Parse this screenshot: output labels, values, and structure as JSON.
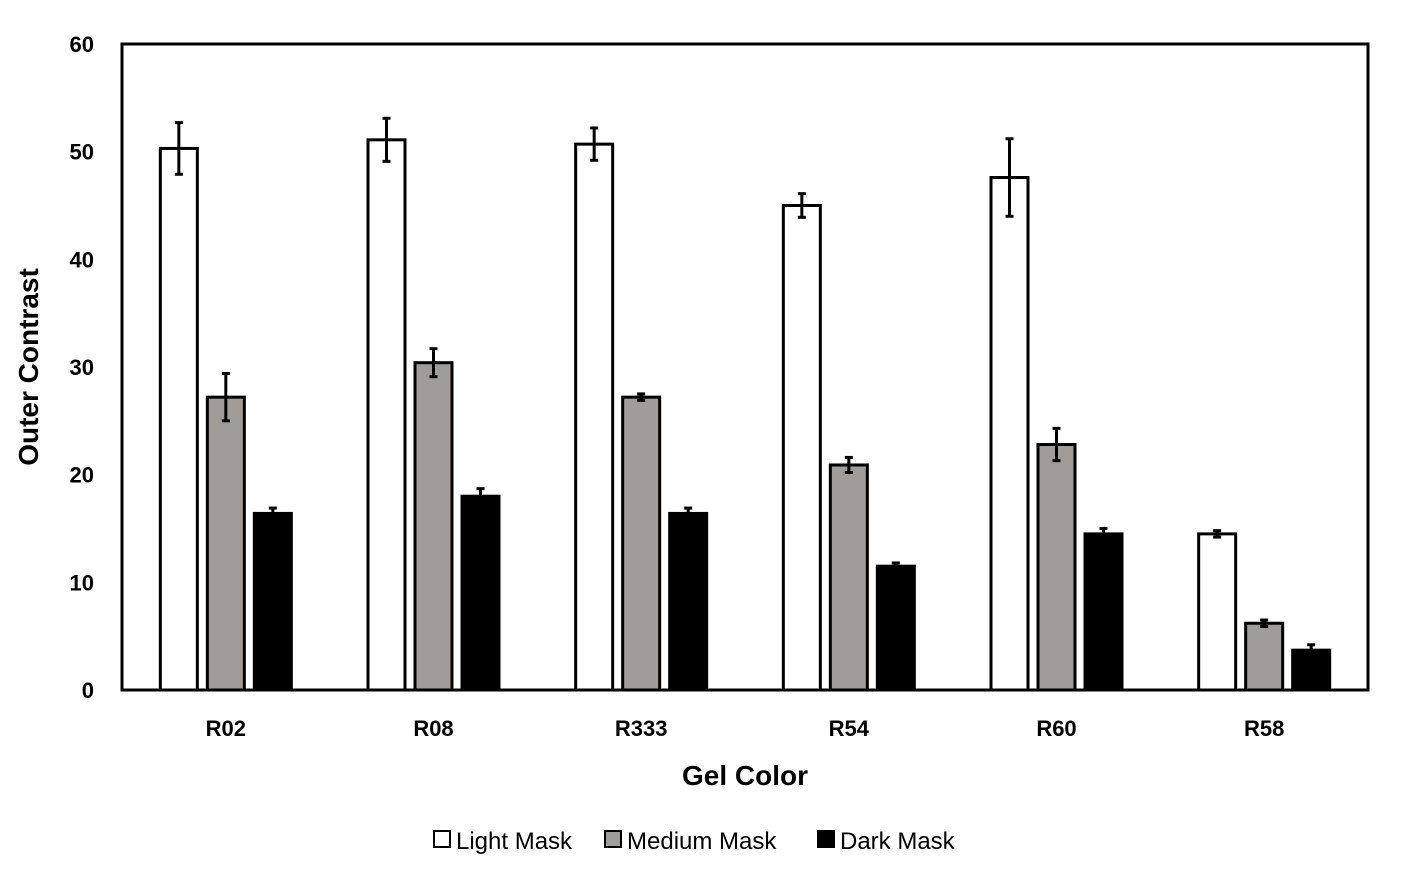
{
  "chart_data": {
    "type": "bar",
    "title": "",
    "xlabel": "Gel Color",
    "ylabel": "Outer Contrast",
    "ylim": [
      0,
      60
    ],
    "yticks": [
      0,
      10,
      20,
      30,
      40,
      50,
      60
    ],
    "grid": false,
    "legend_position": "bottom",
    "categories": [
      "R02",
      "R08",
      "R333",
      "R54",
      "R60",
      "R58"
    ],
    "series": [
      {
        "name": "Light Mask",
        "color": "#ffffff",
        "values": [
          50.3,
          51.1,
          50.7,
          45.0,
          47.6,
          14.5
        ],
        "errors": [
          2.4,
          2.0,
          1.5,
          1.1,
          3.6,
          0.3
        ]
      },
      {
        "name": "Medium Mask",
        "color": "#a09c9a",
        "values": [
          27.2,
          30.4,
          27.2,
          20.9,
          22.8,
          6.2
        ],
        "errors": [
          2.2,
          1.3,
          0.3,
          0.7,
          1.5,
          0.3
        ]
      },
      {
        "name": "Dark Mask",
        "color": "#000000",
        "values": [
          16.4,
          18.0,
          16.4,
          11.5,
          14.5,
          3.7
        ],
        "errors": [
          0.5,
          0.7,
          0.5,
          0.3,
          0.5,
          0.5
        ]
      }
    ]
  }
}
